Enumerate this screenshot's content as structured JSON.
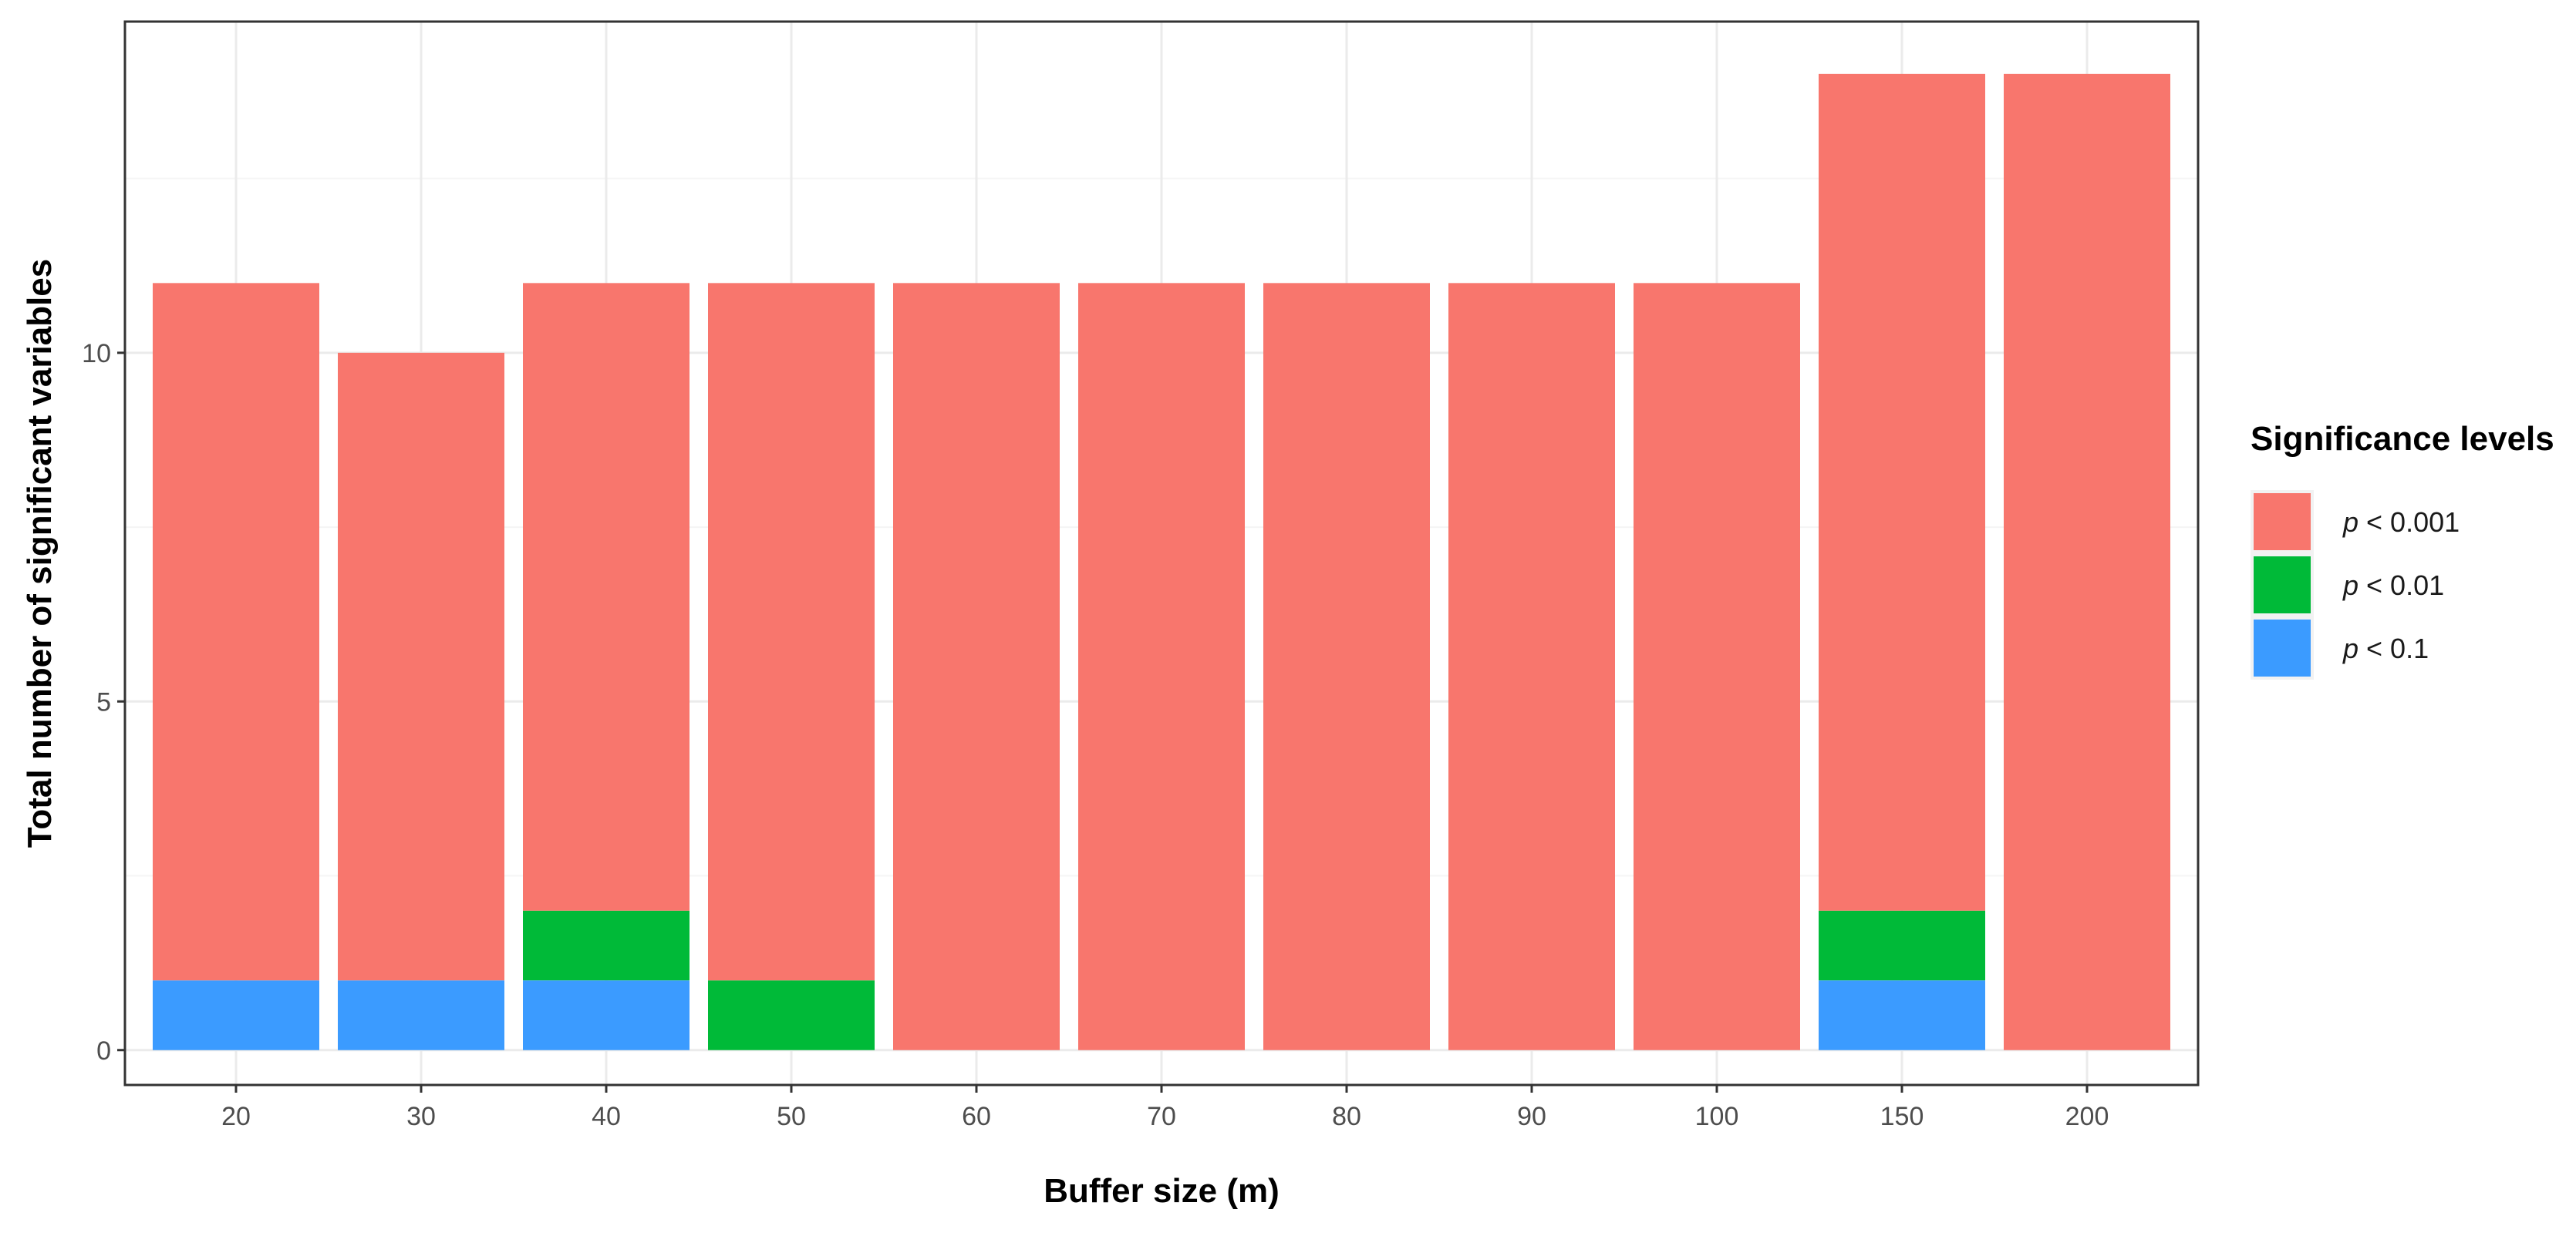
{
  "chart_data": {
    "type": "bar",
    "stacked": true,
    "title": "",
    "xlabel": "Buffer size (m)",
    "ylabel": "Total number of significant variables",
    "categories": [
      "20",
      "30",
      "40",
      "50",
      "60",
      "70",
      "80",
      "90",
      "100",
      "150",
      "200"
    ],
    "series": [
      {
        "name": "p < 0.1",
        "color": "#3b9bff",
        "values": [
          1,
          1,
          1,
          0,
          0,
          0,
          0,
          0,
          0,
          1,
          0
        ]
      },
      {
        "name": "p < 0.01",
        "color": "#00ba38",
        "values": [
          0,
          0,
          1,
          1,
          0,
          0,
          0,
          0,
          0,
          1,
          0
        ]
      },
      {
        "name": "p < 0.001",
        "color": "#f8766d",
        "values": [
          10,
          9,
          9,
          10,
          11,
          11,
          11,
          11,
          11,
          12,
          14
        ]
      }
    ],
    "ylim": [
      -0.5,
      14.75
    ],
    "yticks": [
      0,
      5,
      10
    ],
    "grid": true,
    "legend": {
      "title": "Significance levels",
      "position": "right",
      "order": [
        "p < 0.001",
        "p < 0.01",
        "p < 0.1"
      ],
      "entries": [
        {
          "italic": "p",
          "rest": " < 0.001",
          "color": "#f8766d"
        },
        {
          "italic": "p",
          "rest": " < 0.01",
          "color": "#00ba38"
        },
        {
          "italic": "p",
          "rest": " < 0.1",
          "color": "#3b9bff"
        }
      ]
    },
    "colors": {
      "panel_border": "#333333",
      "grid_major": "#ebebeb",
      "grid_minor": "#f5f5f5",
      "tick": "#333333"
    }
  }
}
